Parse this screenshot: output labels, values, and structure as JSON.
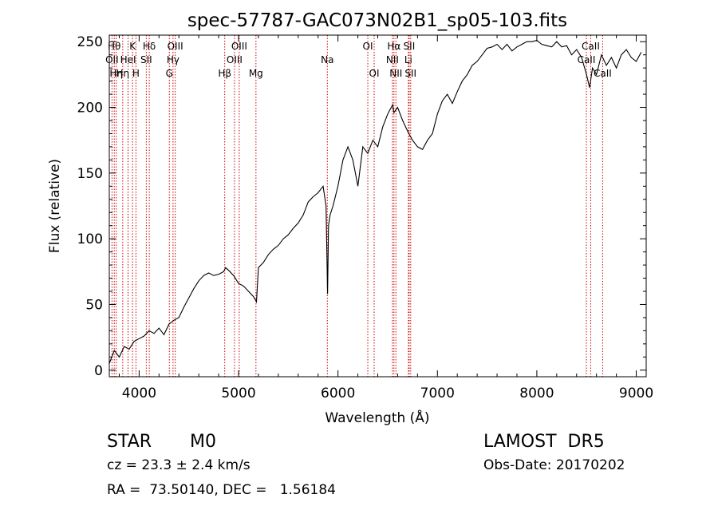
{
  "chart_data": {
    "type": "line",
    "title": "spec-57787-GAC073N02B1_sp05-103.fits",
    "xlabel": "Wavelength (Å)",
    "ylabel": "Flux (relative)",
    "xlim": [
      3700,
      9100
    ],
    "ylim": [
      -5,
      255
    ],
    "xticks": [
      4000,
      5000,
      6000,
      7000,
      8000,
      9000
    ],
    "yticks": [
      0,
      50,
      100,
      150,
      200,
      250
    ],
    "grid": false,
    "line_color": "#000000",
    "marker_color": "#cc0000",
    "series": [
      {
        "x": [
          3700,
          3750,
          3800,
          3850,
          3900,
          3950,
          4000,
          4050,
          4100,
          4150,
          4200,
          4250,
          4300,
          4350,
          4400,
          4450,
          4500,
          4550,
          4600,
          4650,
          4700,
          4750,
          4800,
          4850,
          4870,
          4900,
          4950,
          5000,
          5050,
          5100,
          5150,
          5180,
          5200,
          5250,
          5300,
          5350,
          5400,
          5450,
          5500,
          5550,
          5600,
          5650,
          5700,
          5750,
          5800,
          5850,
          5880,
          5895,
          5905,
          5920,
          5950,
          6000,
          6050,
          6100,
          6150,
          6200,
          6250,
          6300,
          6350,
          6400,
          6450,
          6500,
          6550,
          6563,
          6600,
          6650,
          6700,
          6750,
          6800,
          6850,
          6900,
          6950,
          7000,
          7050,
          7100,
          7150,
          7200,
          7250,
          7300,
          7350,
          7400,
          7450,
          7500,
          7550,
          7600,
          7650,
          7700,
          7750,
          7800,
          7850,
          7900,
          7950,
          8000,
          8050,
          8100,
          8150,
          8200,
          8250,
          8300,
          8350,
          8400,
          8450,
          8500,
          8530,
          8560,
          8600,
          8650,
          8700,
          8750,
          8800,
          8850,
          8900,
          8950,
          9000,
          9050
        ],
        "y": [
          5,
          15,
          10,
          18,
          16,
          22,
          24,
          26,
          30,
          28,
          32,
          27,
          35,
          38,
          40,
          48,
          55,
          62,
          68,
          72,
          74,
          72,
          73,
          75,
          78,
          76,
          72,
          66,
          64,
          60,
          56,
          52,
          78,
          82,
          88,
          92,
          95,
          100,
          103,
          108,
          112,
          118,
          128,
          132,
          135,
          140,
          125,
          58,
          110,
          118,
          125,
          140,
          160,
          170,
          160,
          140,
          170,
          165,
          175,
          170,
          185,
          195,
          202,
          196,
          200,
          190,
          182,
          175,
          170,
          168,
          175,
          180,
          195,
          205,
          210,
          203,
          212,
          220,
          225,
          232,
          235,
          240,
          245,
          246,
          248,
          244,
          248,
          243,
          246,
          248,
          250,
          250,
          251,
          248,
          247,
          246,
          250,
          246,
          247,
          240,
          244,
          238,
          225,
          215,
          230,
          225,
          240,
          232,
          238,
          230,
          240,
          244,
          238,
          235,
          242
        ]
      }
    ],
    "line_markers": [
      {
        "x": 3727,
        "label": "OII",
        "row": 2
      },
      {
        "x": 3750,
        "label": "Hθ",
        "row": 1
      },
      {
        "x": 3770,
        "label": "Hη",
        "row": 3
      },
      {
        "x": 3835,
        "label": "Hη",
        "row": 3
      },
      {
        "x": 3889,
        "label": "HeI",
        "row": 2
      },
      {
        "x": 3934,
        "label": "K",
        "row": 1
      },
      {
        "x": 3968,
        "label": "H",
        "row": 3
      },
      {
        "x": 4072,
        "label": "SII",
        "row": 2
      },
      {
        "x": 4102,
        "label": "Hδ",
        "row": 1
      },
      {
        "x": 4304,
        "label": "G",
        "row": 3
      },
      {
        "x": 4341,
        "label": "Hγ",
        "row": 2
      },
      {
        "x": 4363,
        "label": "OIII",
        "row": 1
      },
      {
        "x": 4861,
        "label": "Hβ",
        "row": 3
      },
      {
        "x": 4959,
        "label": "OIII",
        "row": 2
      },
      {
        "x": 5007,
        "label": "OIII",
        "row": 1
      },
      {
        "x": 5175,
        "label": "Mg",
        "row": 3
      },
      {
        "x": 5893,
        "label": "Na",
        "row": 2
      },
      {
        "x": 6300,
        "label": "OI",
        "row": 1
      },
      {
        "x": 6364,
        "label": "OI",
        "row": 3
      },
      {
        "x": 6548,
        "label": "NII",
        "row": 2
      },
      {
        "x": 6563,
        "label": "Hα",
        "row": 1
      },
      {
        "x": 6583,
        "label": "NII",
        "row": 3
      },
      {
        "x": 6708,
        "label": "Li",
        "row": 2
      },
      {
        "x": 6716,
        "label": "SII",
        "row": 1
      },
      {
        "x": 6731,
        "label": "SII",
        "row": 3
      },
      {
        "x": 8498,
        "label": "CaII",
        "row": 2
      },
      {
        "x": 8542,
        "label": "CaII",
        "row": 1
      },
      {
        "x": 8662,
        "label": "CaII",
        "row": 3
      }
    ]
  },
  "info": {
    "class_label": "STAR",
    "subclass": "M0",
    "survey": "LAMOST  DR5",
    "cz": "cz = 23.3 ± 2.4 km/s",
    "obs_date": "Obs-Date: 20170202",
    "coords": "RA =  73.50140, DEC =   1.56184"
  }
}
